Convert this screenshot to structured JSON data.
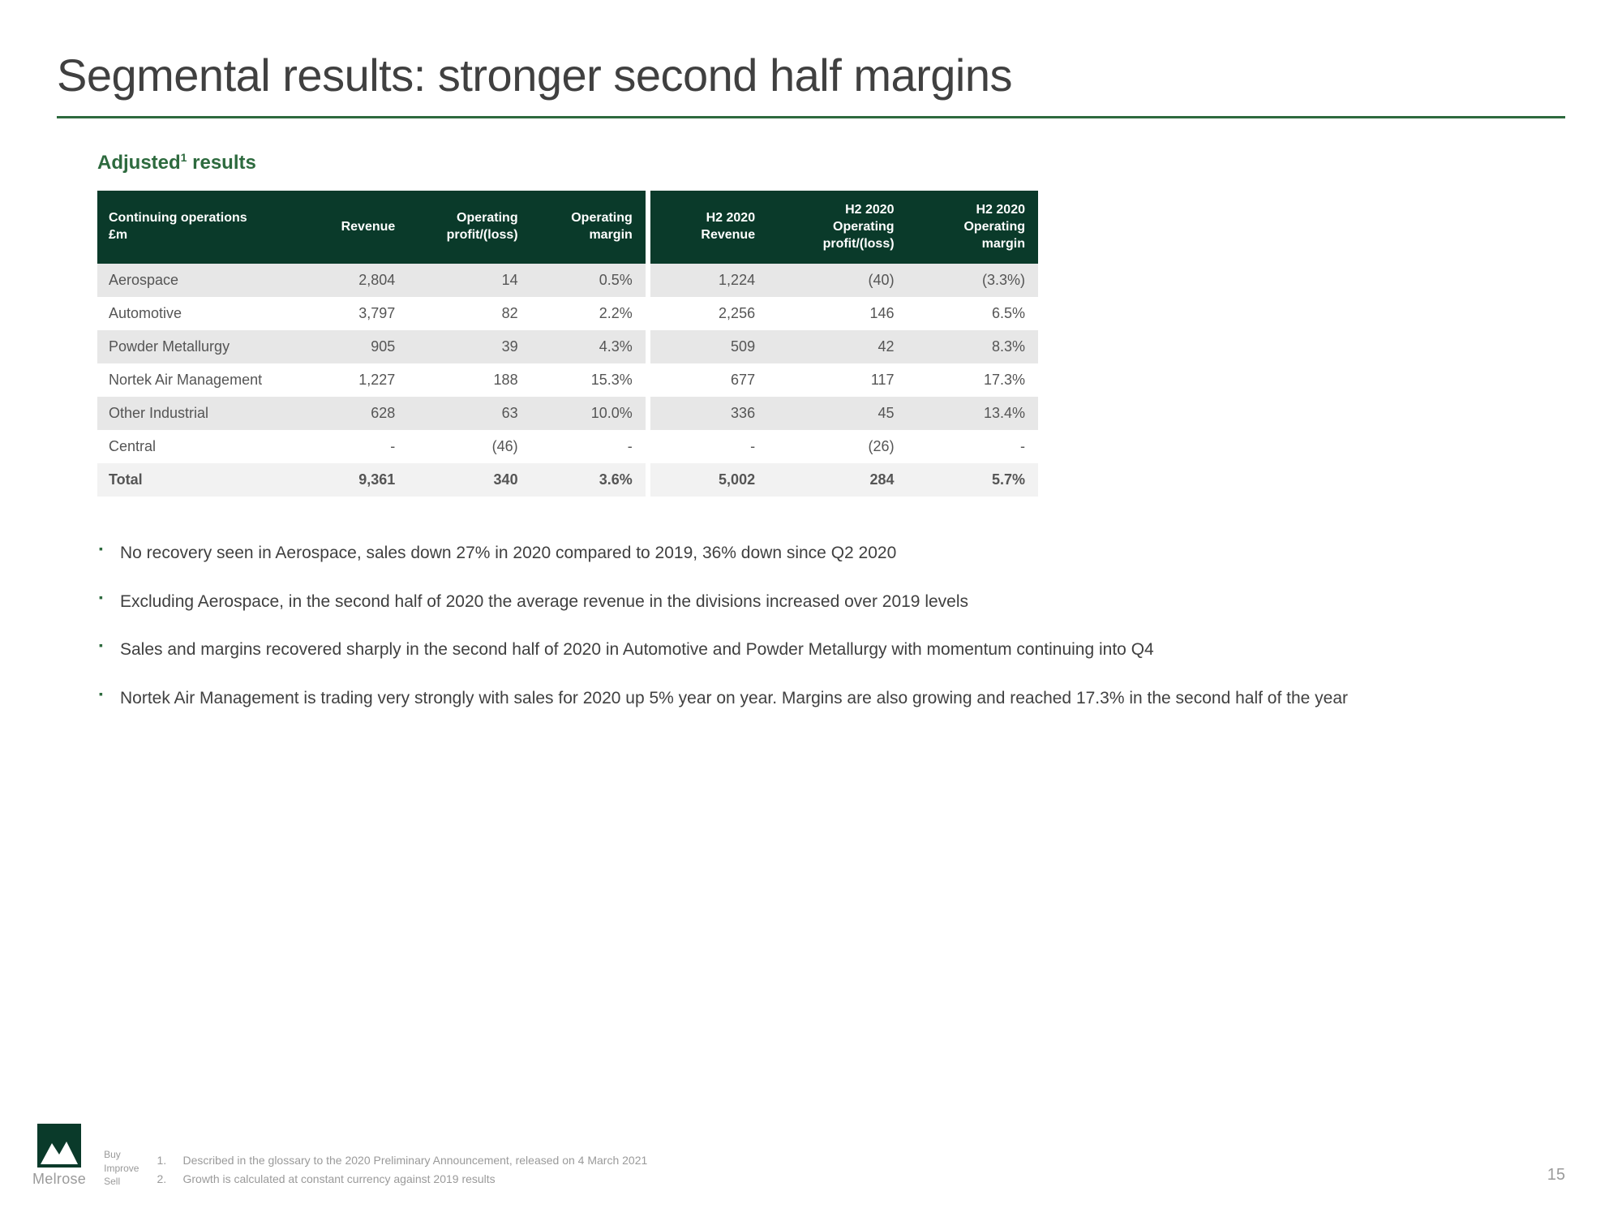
{
  "title": "Segmental results: stronger second half margins",
  "subtitle_prefix": "Adjusted",
  "subtitle_sup": "1",
  "subtitle_suffix": " results",
  "colors": {
    "brand_green": "#2d6a3e",
    "header_bg": "#0a3a2a",
    "row_alt_bg": "#e7e7e7",
    "total_bg": "#f2f2f2",
    "text_body": "#404040",
    "text_muted": "#9a9a9a"
  },
  "table": {
    "columns": [
      "Continuing operations £m",
      "Revenue",
      "Operating profit/(loss)",
      "Operating margin",
      "H2 2020 Revenue",
      "H2 2020 Operating profit/(loss)",
      "H2 2020 Operating margin"
    ],
    "col_header_html": {
      "c0a": "Continuing operations",
      "c0b": "£m",
      "c1": "Revenue",
      "c2a": "Operating",
      "c2b": "profit/(loss)",
      "c3a": "Operating",
      "c3b": "margin",
      "c4a": "H2 2020",
      "c4b": "Revenue",
      "c5a": "H2 2020",
      "c5b": "Operating",
      "c5c": "profit/(loss)",
      "c6a": "H2 2020",
      "c6b": "Operating",
      "c6c": "margin"
    },
    "rows": [
      {
        "label": "Aerospace",
        "rev": "2,804",
        "op": "14",
        "mar": "0.5%",
        "h2rev": "1,224",
        "h2op": "(40)",
        "h2mar": "(3.3%)"
      },
      {
        "label": "Automotive",
        "rev": "3,797",
        "op": "82",
        "mar": "2.2%",
        "h2rev": "2,256",
        "h2op": "146",
        "h2mar": "6.5%"
      },
      {
        "label": "Powder Metallurgy",
        "rev": "905",
        "op": "39",
        "mar": "4.3%",
        "h2rev": "509",
        "h2op": "42",
        "h2mar": "8.3%"
      },
      {
        "label": "Nortek Air Management",
        "rev": "1,227",
        "op": "188",
        "mar": "15.3%",
        "h2rev": "677",
        "h2op": "117",
        "h2mar": "17.3%"
      },
      {
        "label": "Other Industrial",
        "rev": "628",
        "op": "63",
        "mar": "10.0%",
        "h2rev": "336",
        "h2op": "45",
        "h2mar": "13.4%"
      },
      {
        "label": "Central",
        "rev": "-",
        "op": "(46)",
        "mar": "-",
        "h2rev": "-",
        "h2op": "(26)",
        "h2mar": "-"
      }
    ],
    "total": {
      "label": "Total",
      "rev": "9,361",
      "op": "340",
      "mar": "3.6%",
      "h2rev": "5,002",
      "h2op": "284",
      "h2mar": "5.7%"
    }
  },
  "bullets": [
    "No recovery seen in Aerospace, sales down 27% in 2020 compared to 2019, 36% down since Q2 2020",
    "Excluding Aerospace, in the second half of 2020 the average revenue in the divisions increased over 2019 levels",
    "Sales and margins recovered sharply in the second half of 2020 in Automotive and Powder Metallurgy with momentum continuing into Q4",
    "Nortek Air Management is trading very strongly with sales for 2020 up 5% year on year.  Margins are also growing and reached 17.3% in the second half of the year"
  ],
  "footer": {
    "brand": "Melrose",
    "tagline": [
      "Buy",
      "Improve",
      "Sell"
    ],
    "footnotes": [
      {
        "n": "1.",
        "t": "Described in the glossary to the 2020 Preliminary Announcement, released on 4 March 2021"
      },
      {
        "n": "2.",
        "t": "Growth is calculated at constant currency against 2019 results"
      }
    ],
    "page_number": "15"
  }
}
